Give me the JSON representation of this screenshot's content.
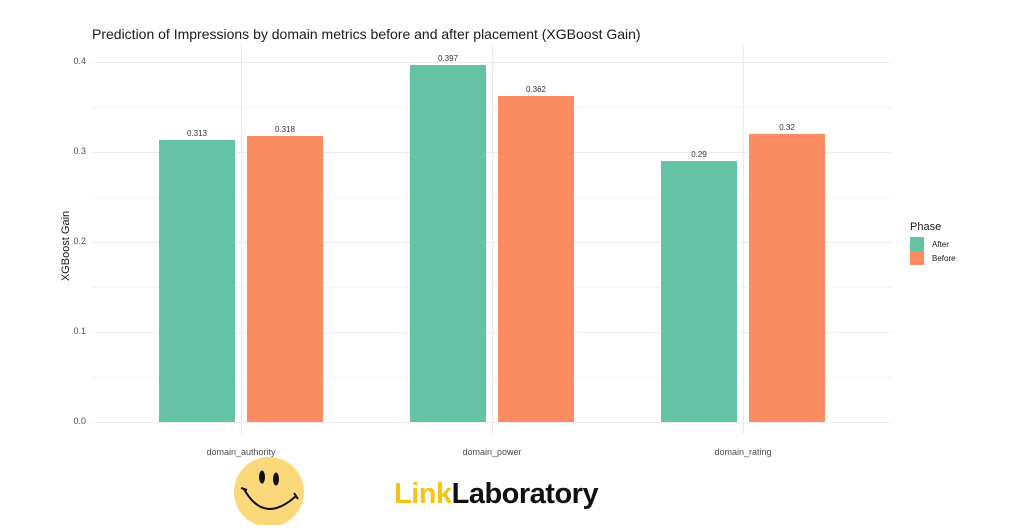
{
  "chart_data": {
    "type": "bar",
    "title": "Prediction of Impressions by domain metrics before and after placement (XGBoost Gain)",
    "xlabel": "",
    "ylabel": "XGBoost Gain",
    "categories": [
      "domain_authority",
      "domain_power",
      "domain_rating"
    ],
    "series": [
      {
        "name": "After",
        "color": "#66c2a5",
        "values": [
          0.313,
          0.397,
          0.29
        ]
      },
      {
        "name": "Before",
        "color": "#fc8d62",
        "values": [
          0.318,
          0.362,
          0.32
        ]
      }
    ],
    "bar_labels": {
      "After": [
        "0.313",
        "0.397",
        "0.29"
      ],
      "Before": [
        "0.318",
        "0.362",
        "0.32"
      ]
    },
    "ylim": [
      0,
      0.4
    ],
    "yticks": [
      "0.0",
      "0.1",
      "0.2",
      "0.3",
      "0.4"
    ],
    "grid": true,
    "legend": {
      "title": "Phase",
      "position": "right",
      "entries": [
        "After",
        "Before"
      ]
    }
  },
  "branding": {
    "logo_part1": "Link",
    "logo_part2": "Laboratory",
    "mascot": "smiley-face-icon"
  }
}
